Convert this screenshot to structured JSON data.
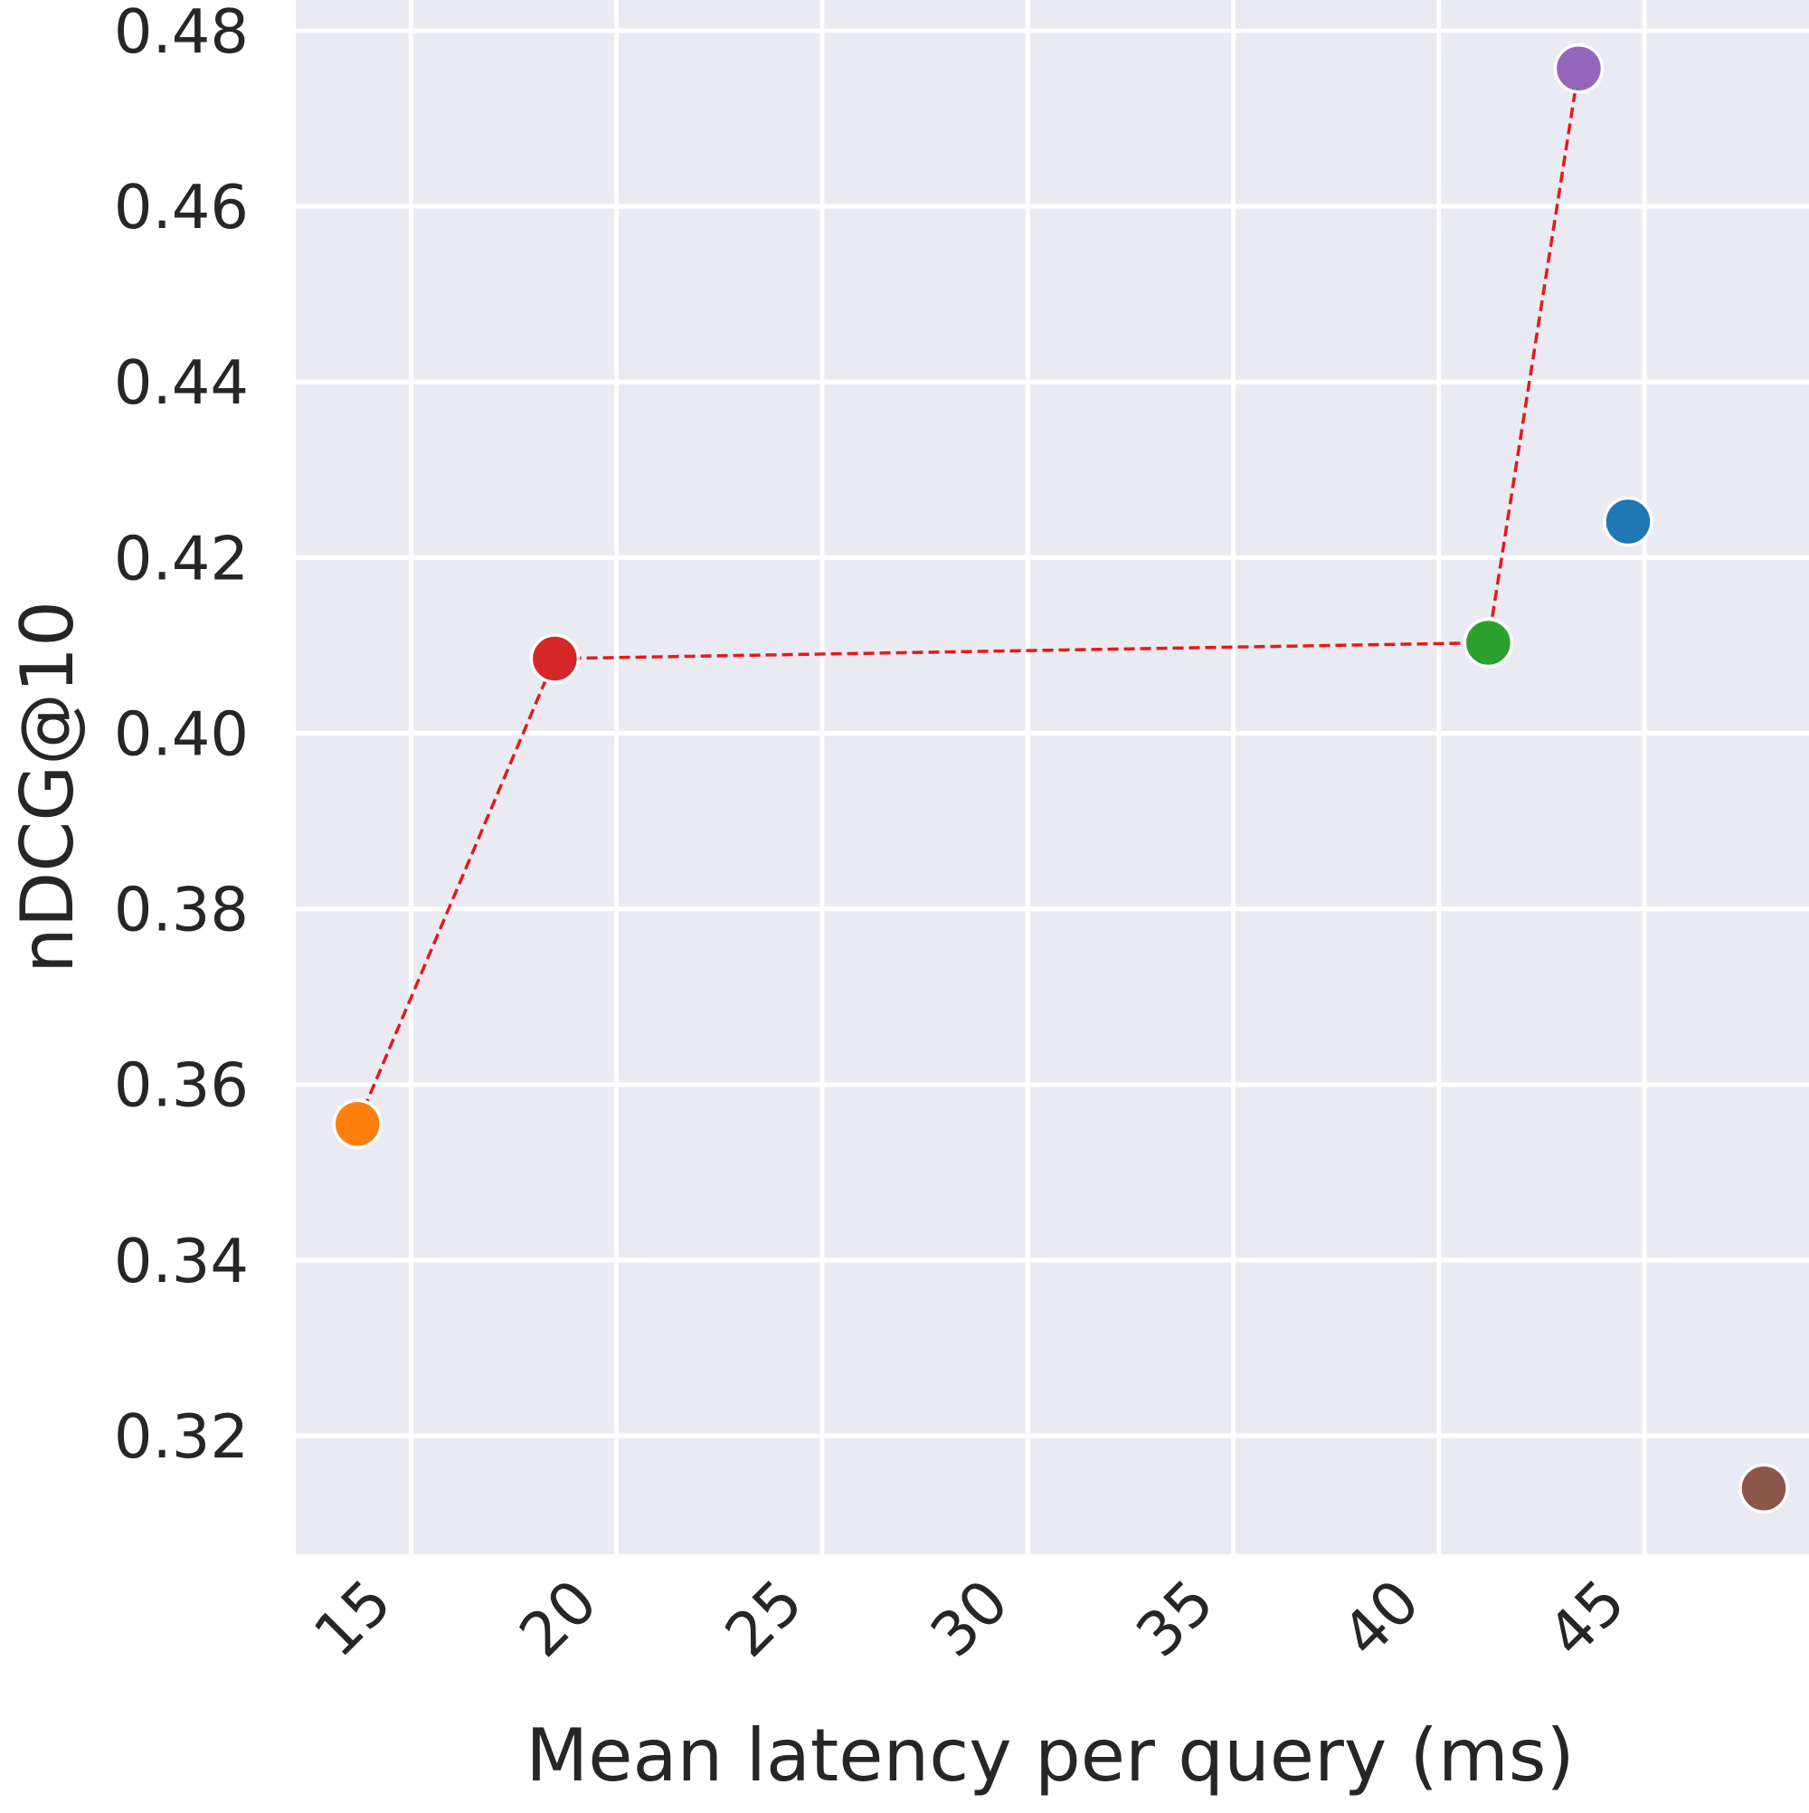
{
  "colors": {
    "plot_background": "#EAEAF2",
    "grid": "#FFFFFF",
    "text": "#262626",
    "pareto_line": "#E31A1C"
  },
  "chart_data": {
    "type": "scatter",
    "title": "",
    "xlabel": "Mean latency per query (ms)",
    "ylabel": "nDCG@10",
    "xlim": [
      12.2,
      49.0
    ],
    "ylim": [
      0.3065,
      0.4835
    ],
    "x_ticks": [
      15,
      20,
      25,
      30,
      35,
      40,
      45
    ],
    "x_tick_labels": [
      "15",
      "20",
      "25",
      "30",
      "35",
      "40",
      "45"
    ],
    "y_ticks": [
      0.32,
      0.34,
      0.36,
      0.38,
      0.4,
      0.42,
      0.44,
      0.46,
      0.48
    ],
    "y_tick_labels": [
      "0.32",
      "0.34",
      "0.36",
      "0.38",
      "0.40",
      "0.42",
      "0.44",
      "0.46",
      "0.48"
    ],
    "grid": true,
    "legend": "none",
    "points": [
      {
        "x": 13.7,
        "y": 0.3555,
        "color": "#FF7F0E"
      },
      {
        "x": 18.5,
        "y": 0.4085,
        "color": "#D62728"
      },
      {
        "x": 41.2,
        "y": 0.4103,
        "color": "#2CA02C"
      },
      {
        "x": 43.4,
        "y": 0.4757,
        "color": "#9467BD"
      },
      {
        "x": 44.6,
        "y": 0.4241,
        "color": "#1F77B4"
      },
      {
        "x": 47.9,
        "y": 0.314,
        "color": "#8C564B"
      }
    ],
    "pareto_frontier": {
      "style": "dashed",
      "x": [
        13.7,
        18.5,
        41.2,
        43.4
      ],
      "y": [
        0.3555,
        0.4085,
        0.4103,
        0.4757
      ]
    }
  }
}
